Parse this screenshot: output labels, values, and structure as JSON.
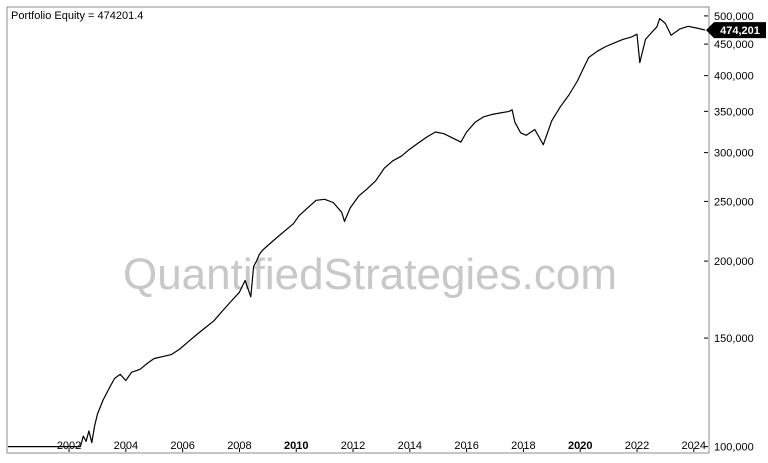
{
  "chart_data": {
    "type": "line",
    "title": "Portfolio Equity = 474201.4",
    "watermark": "QuantifiedStrategies.com",
    "y_scale": "log",
    "ylim": [
      98000,
      515000
    ],
    "xlim": [
      1999.85,
      2024.5
    ],
    "x_ticks": [
      2002,
      2004,
      2006,
      2008,
      2010,
      2012,
      2014,
      2016,
      2018,
      2020,
      2022,
      2024
    ],
    "x_tick_labels": [
      "2002",
      "2004",
      "2006",
      "2008",
      "2010",
      "2012",
      "2014",
      "2016",
      "2018",
      "2020",
      "2022",
      "2024"
    ],
    "x_bold_ticks": [
      "2010",
      "2020"
    ],
    "y_ticks": [
      100000,
      150000,
      200000,
      250000,
      300000,
      350000,
      400000,
      450000,
      500000
    ],
    "y_tick_labels": [
      "100,000",
      "150,000",
      "200,000",
      "250,000",
      "300,000",
      "350,000",
      "400,000",
      "450,000",
      "500,000"
    ],
    "last_value_label": "474,201",
    "grid": false,
    "line_color": "#000000",
    "series": [
      {
        "x": [
          1999.85,
          2002.4,
          2002.5,
          2002.6,
          2002.7,
          2002.8,
          2002.9,
          2003.0,
          2003.2,
          2003.4,
          2003.6,
          2003.8,
          2004.0,
          2004.2,
          2004.5,
          2004.8,
          2005.0,
          2005.3,
          2005.6,
          2005.9,
          2006.2,
          2006.5,
          2006.8,
          2007.1,
          2007.4,
          2007.7,
          2008.0,
          2008.2,
          2008.4,
          2008.5,
          2008.6,
          2008.7,
          2008.8,
          2009.0,
          2009.3,
          2009.6,
          2009.9,
          2010.1,
          2010.4,
          2010.7,
          2011.0,
          2011.3,
          2011.6,
          2011.7,
          2011.9,
          2012.2,
          2012.5,
          2012.8,
          2013.1,
          2013.4,
          2013.7,
          2014.0,
          2014.3,
          2014.6,
          2014.9,
          2015.2,
          2015.5,
          2015.8,
          2016.0,
          2016.3,
          2016.6,
          2016.9,
          2017.2,
          2017.5,
          2017.6,
          2017.7,
          2017.9,
          2018.1,
          2018.4,
          2018.5,
          2018.7,
          2019.0,
          2019.3,
          2019.6,
          2019.9,
          2020.1,
          2020.3,
          2020.6,
          2020.9,
          2021.2,
          2021.5,
          2021.8,
          2022.0,
          2022.1,
          2022.3,
          2022.5,
          2022.7,
          2022.8,
          2023.0,
          2023.2,
          2023.5,
          2023.8,
          2024.1,
          2024.4
        ],
        "y": [
          100000,
          100000,
          104000,
          102000,
          106000,
          101500,
          108000,
          113000,
          119000,
          124000,
          129000,
          131000,
          128000,
          132000,
          133500,
          137000,
          139000,
          140000,
          141000,
          144000,
          148000,
          152000,
          156000,
          160000,
          166000,
          172000,
          178000,
          186000,
          175000,
          196000,
          200000,
          205000,
          208000,
          212000,
          218000,
          224000,
          230000,
          237000,
          244000,
          251000,
          252000,
          249000,
          240000,
          232000,
          244000,
          255000,
          262000,
          270000,
          283000,
          291000,
          296000,
          304000,
          311000,
          318000,
          324000,
          322000,
          317000,
          312000,
          324000,
          336000,
          343000,
          346000,
          348000,
          350000,
          352000,
          336000,
          323000,
          320000,
          327000,
          321000,
          309000,
          338000,
          356000,
          372000,
          392000,
          410000,
          428000,
          438000,
          446000,
          452000,
          458000,
          462000,
          467000,
          420000,
          458000,
          469000,
          480000,
          495000,
          486000,
          465000,
          476000,
          481000,
          478000,
          474201
        ]
      }
    ]
  }
}
